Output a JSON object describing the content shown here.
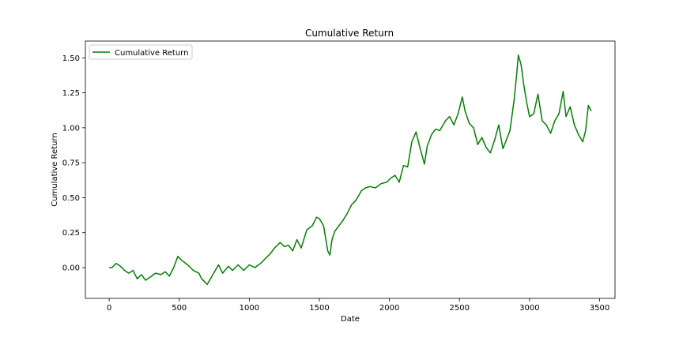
{
  "chart_data": {
    "type": "line",
    "title": "Cumulative Return",
    "xlabel": "Date",
    "ylabel": "Cumulative Return",
    "xlim": [
      -170,
      3610
    ],
    "ylim": [
      -0.22,
      1.62
    ],
    "xticks": [
      0,
      500,
      1000,
      1500,
      2000,
      2500,
      3000,
      3500
    ],
    "xtick_labels": [
      "0",
      "500",
      "1000",
      "1500",
      "2000",
      "2500",
      "3000",
      "3500"
    ],
    "yticks": [
      0.0,
      0.25,
      0.5,
      0.75,
      1.0,
      1.25,
      1.5
    ],
    "ytick_labels": [
      "0.00",
      "0.25",
      "0.50",
      "0.75",
      "1.00",
      "1.25",
      "1.50"
    ],
    "grid": false,
    "legend_position": "upper left",
    "series": [
      {
        "name": "Cumulative Return",
        "color": "#008000",
        "x": [
          0,
          20,
          50,
          80,
          110,
          140,
          170,
          200,
          230,
          260,
          290,
          330,
          370,
          400,
          430,
          460,
          490,
          520,
          560,
          600,
          640,
          660,
          700,
          740,
          780,
          810,
          850,
          880,
          920,
          960,
          1000,
          1040,
          1080,
          1110,
          1150,
          1180,
          1220,
          1250,
          1280,
          1310,
          1340,
          1370,
          1410,
          1450,
          1480,
          1500,
          1530,
          1560,
          1575,
          1590,
          1610,
          1640,
          1670,
          1700,
          1730,
          1760,
          1800,
          1830,
          1860,
          1900,
          1940,
          1980,
          2010,
          2040,
          2070,
          2100,
          2130,
          2160,
          2190,
          2220,
          2250,
          2270,
          2300,
          2330,
          2360,
          2400,
          2430,
          2460,
          2490,
          2520,
          2540,
          2570,
          2600,
          2630,
          2660,
          2690,
          2720,
          2750,
          2780,
          2810,
          2830,
          2860,
          2890,
          2910,
          2920,
          2940,
          2960,
          2980,
          3000,
          3030,
          3060,
          3090,
          3120,
          3150,
          3180,
          3210,
          3240,
          3260,
          3290,
          3320,
          3350,
          3380,
          3400,
          3420,
          3440
        ],
        "y": [
          0.0,
          0.0,
          0.03,
          0.01,
          -0.02,
          -0.04,
          -0.02,
          -0.08,
          -0.05,
          -0.09,
          -0.07,
          -0.04,
          -0.05,
          -0.03,
          -0.06,
          0.0,
          0.08,
          0.05,
          0.02,
          -0.02,
          -0.04,
          -0.08,
          -0.12,
          -0.05,
          0.02,
          -0.04,
          0.01,
          -0.02,
          0.02,
          -0.02,
          0.02,
          0.0,
          0.03,
          0.06,
          0.1,
          0.14,
          0.18,
          0.15,
          0.16,
          0.12,
          0.2,
          0.14,
          0.27,
          0.3,
          0.36,
          0.35,
          0.3,
          0.12,
          0.09,
          0.2,
          0.26,
          0.3,
          0.34,
          0.39,
          0.45,
          0.48,
          0.55,
          0.57,
          0.58,
          0.57,
          0.6,
          0.61,
          0.64,
          0.66,
          0.61,
          0.73,
          0.72,
          0.9,
          0.97,
          0.85,
          0.74,
          0.87,
          0.95,
          0.99,
          0.98,
          1.05,
          1.08,
          1.02,
          1.1,
          1.22,
          1.12,
          1.03,
          1.0,
          0.88,
          0.93,
          0.86,
          0.82,
          0.91,
          1.02,
          0.85,
          0.9,
          0.98,
          1.2,
          1.4,
          1.52,
          1.45,
          1.3,
          1.18,
          1.08,
          1.1,
          1.24,
          1.05,
          1.02,
          0.96,
          1.05,
          1.1,
          1.26,
          1.08,
          1.15,
          1.02,
          0.95,
          0.9,
          0.98,
          1.16,
          1.12
        ]
      }
    ]
  }
}
